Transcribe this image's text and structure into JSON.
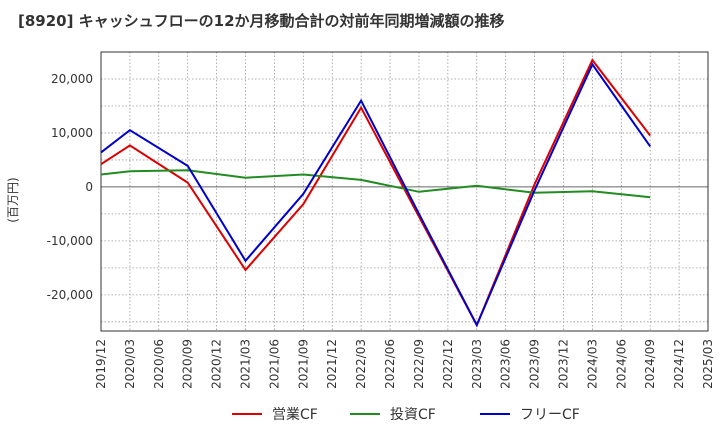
{
  "chart_data": {
    "type": "line",
    "title": "[8920]  キャッシュフローの12か月移動合計の対前年同期増減額の推移",
    "ylabel": "(百万円)",
    "xlabel": "",
    "ylim": [
      -26700,
      25000
    ],
    "yticks": [
      -20000,
      -10000,
      0,
      10000,
      20000
    ],
    "ytick_labels": [
      "-20,000",
      "-10,000",
      "0",
      "10,000",
      "20,000"
    ],
    "x_ticks": [
      "2019/12",
      "2020/03",
      "2020/06",
      "2020/09",
      "2020/12",
      "2021/03",
      "2021/06",
      "2021/09",
      "2021/12",
      "2022/03",
      "2022/06",
      "2022/09",
      "2022/12",
      "2023/03",
      "2023/06",
      "2023/09",
      "2023/12",
      "2024/03",
      "2024/06",
      "2024/09",
      "2024/12",
      "2025/03"
    ],
    "grid": true,
    "legend_position": "bottom",
    "series": [
      {
        "name": "営業CF",
        "color": "#dd0000",
        "points": [
          [
            "2019/12",
            4200
          ],
          [
            "2020/03",
            7700
          ],
          [
            "2020/09",
            800
          ],
          [
            "2021/03",
            -15400
          ],
          [
            "2021/09",
            -3200
          ],
          [
            "2022/03",
            14700
          ],
          [
            "2022/09",
            -5500
          ],
          [
            "2023/03",
            -25600
          ],
          [
            "2023/09",
            500
          ],
          [
            "2024/03",
            23500
          ],
          [
            "2024/09",
            9500
          ]
        ]
      },
      {
        "name": "投資CF",
        "color": "#228b22",
        "points": [
          [
            "2019/12",
            2300
          ],
          [
            "2020/03",
            2900
          ],
          [
            "2020/09",
            3100
          ],
          [
            "2021/03",
            1700
          ],
          [
            "2021/09",
            2300
          ],
          [
            "2022/03",
            1300
          ],
          [
            "2022/09",
            -900
          ],
          [
            "2023/03",
            200
          ],
          [
            "2023/09",
            -1100
          ],
          [
            "2024/03",
            -800
          ],
          [
            "2024/09",
            -1900
          ]
        ]
      },
      {
        "name": "フリーCF",
        "color": "#0000cc",
        "points": [
          [
            "2019/12",
            6400
          ],
          [
            "2020/03",
            10500
          ],
          [
            "2020/09",
            3900
          ],
          [
            "2021/03",
            -13700
          ],
          [
            "2021/09",
            -1300
          ],
          [
            "2022/03",
            16000
          ],
          [
            "2022/09",
            -5000
          ],
          [
            "2023/03",
            -25600
          ],
          [
            "2023/09",
            -600
          ],
          [
            "2024/03",
            22700
          ],
          [
            "2024/09",
            7500
          ]
        ]
      }
    ]
  }
}
